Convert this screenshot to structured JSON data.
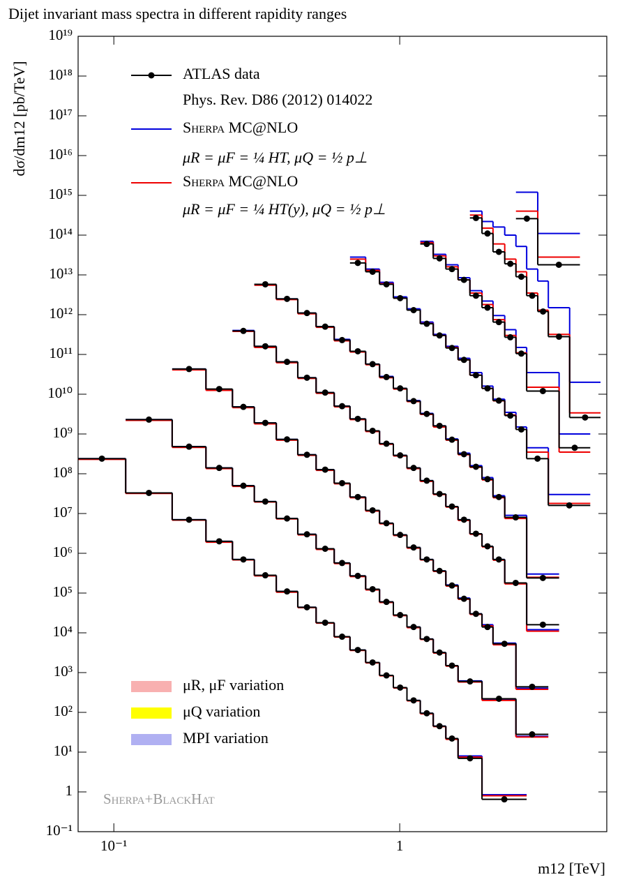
{
  "chart_data": {
    "type": "step",
    "title": "Dijet invariant mass spectra in different rapidity ranges",
    "xlabel": "m12 [TeV]",
    "ylabel": "dσ/dm12 [pb/TeV]",
    "log_x": true,
    "log_y": true,
    "xlim": [
      0.075,
      5.3
    ],
    "ylim": [
      0.1,
      1e+19
    ],
    "xticks": [
      {
        "value": 0.1,
        "label": "10⁻¹"
      },
      1
    ],
    "yticks": [
      {
        "value": 0.1,
        "label": "10⁻¹"
      },
      1,
      {
        "value": 10,
        "label": "10¹"
      },
      {
        "value": 100,
        "label": "10²"
      },
      {
        "value": 1000,
        "label": "10³"
      },
      {
        "value": 10000,
        "label": "10⁴"
      },
      {
        "value": 100000,
        "label": "10⁵"
      },
      {
        "value": 1000000,
        "label": "10⁶"
      },
      {
        "value": 10000000.0,
        "label": "10⁷"
      },
      {
        "value": 100000000.0,
        "label": "10⁸"
      },
      {
        "value": 1000000000.0,
        "label": "10⁹"
      },
      {
        "value": 10000000000.0,
        "label": "10¹⁰"
      },
      {
        "value": 100000000000.0,
        "label": "10¹¹"
      },
      {
        "value": 1000000000000.0,
        "label": "10¹²"
      },
      {
        "value": 10000000000000.0,
        "label": "10¹³"
      },
      {
        "value": 100000000000000.0,
        "label": "10¹⁴"
      },
      {
        "value": 1000000000000000.0,
        "label": "10¹⁵"
      },
      {
        "value": 1e+16,
        "label": "10¹⁶"
      },
      {
        "value": 1e+17,
        "label": "10¹⁷"
      },
      {
        "value": 1e+18,
        "label": "10¹⁸"
      },
      {
        "value": 1e+19,
        "label": "10¹⁹"
      }
    ],
    "ranges": [
      {
        "bins": [
          0.075,
          0.11,
          0.16,
          0.21,
          0.26,
          0.31,
          0.37,
          0.44,
          0.51,
          0.59,
          0.67,
          0.76,
          0.85,
          0.95,
          1.06,
          1.18,
          1.31,
          1.45,
          1.6,
          1.94,
          2.78
        ]
      },
      {
        "bins": [
          0.11,
          0.16,
          0.21,
          0.26,
          0.31,
          0.37,
          0.44,
          0.51,
          0.59,
          0.67,
          0.76,
          0.85,
          0.95,
          1.06,
          1.18,
          1.31,
          1.45,
          1.6,
          1.94,
          2.55,
          3.31
        ]
      },
      {
        "bins": [
          0.16,
          0.21,
          0.26,
          0.31,
          0.37,
          0.44,
          0.51,
          0.59,
          0.67,
          0.76,
          0.85,
          0.95,
          1.06,
          1.18,
          1.31,
          1.45,
          1.6,
          1.76,
          1.94,
          2.12,
          2.55,
          3.31
        ]
      },
      {
        "bins": [
          0.26,
          0.31,
          0.37,
          0.44,
          0.51,
          0.59,
          0.67,
          0.76,
          0.85,
          0.95,
          1.06,
          1.18,
          1.31,
          1.45,
          1.6,
          1.76,
          1.94,
          2.12,
          2.33,
          2.78,
          3.61
        ]
      },
      {
        "bins": [
          0.31,
          0.37,
          0.44,
          0.51,
          0.59,
          0.67,
          0.76,
          0.85,
          0.95,
          1.06,
          1.18,
          1.31,
          1.45,
          1.6,
          1.76,
          1.94,
          2.12,
          2.33,
          2.78,
          3.61
        ]
      },
      {
        "bins": [
          0.67,
          0.76,
          0.85,
          0.95,
          1.06,
          1.18,
          1.31,
          1.45,
          1.6,
          1.76,
          1.94,
          2.12,
          2.33,
          2.55,
          2.78,
          3.31,
          4.64
        ]
      },
      {
        "bins": [
          1.18,
          1.31,
          1.45,
          1.6,
          1.76,
          1.94,
          2.12,
          2.33,
          2.55,
          2.78,
          3.61,
          4.64
        ]
      },
      {
        "bins": [
          1.76,
          1.94,
          2.12,
          2.33,
          2.55,
          2.78,
          3.04,
          3.31,
          3.93,
          5.04
        ]
      },
      {
        "bins": [
          2.55,
          3.04,
          4.27
        ]
      }
    ],
    "series": [
      {
        "name": "ATLAS data",
        "reference": "Phys. Rev. D86 (2012) 014022",
        "color": "#000000",
        "values": [
          [
            240000000.0,
            33000000.0,
            7000000.0,
            2000000.0,
            700000.0,
            280000.0,
            110000.0,
            44000.0,
            18000.0,
            8000.0,
            3700.0,
            1800.0,
            850,
            420,
            200,
            95,
            45,
            22,
            7,
            0.65
          ],
          [
            2300000000.0,
            480000000.0,
            140000000.0,
            50000000.0,
            20000000.0,
            7500000.0,
            3000000.0,
            1300000.0,
            570000.0,
            270000.0,
            125000.0,
            60000.0,
            28000.0,
            14000.0,
            7000.0,
            3200.0,
            1500.0,
            600,
            220,
            28
          ],
          [
            43000000000.0,
            13500000000.0,
            4800000000.0,
            1900000000.0,
            730000000.0,
            300000000.0,
            127000000.0,
            58000000.0,
            26000000.0,
            12000000.0,
            5700000.0,
            2900000.0,
            1400000.0,
            700000.0,
            360000.0,
            155000.0,
            72000.0,
            30000.0,
            14000.0,
            5300.0,
            440
          ],
          [
            390000000000.0,
            160000000000.0,
            65000000000.0,
            26000000000.0,
            11000000000.0,
            5000000000.0,
            2400000000.0,
            1200000000.0,
            570000000.0,
            290000000.0,
            140000000.0,
            67000000.0,
            31000000.0,
            15000000.0,
            7000000.0,
            3100000.0,
            1500000.0,
            700000.0,
            180000.0,
            16000.0
          ],
          [
            5800000000000.0,
            2500000000000.0,
            1100000000000.0,
            500000000000.0,
            230000000000.0,
            120000000000.0,
            57000000000.0,
            27000000000.0,
            14000000000.0,
            6700000000.0,
            3200000000.0,
            1600000000.0,
            720000000.0,
            310000000.0,
            150000000.0,
            73000000.0,
            26000000.0,
            8000000.0,
            240000.0
          ],
          [
            20000000000000.0,
            12000000000000.0,
            5800000000000.0,
            2600000000000.0,
            1300000000000.0,
            590000000000.0,
            300000000000.0,
            145000000000.0,
            73000000000.0,
            30000000000.0,
            14000000000.0,
            6900000000.0,
            2900000000.0,
            1300000000.0,
            240000000.0,
            16000000.0
          ],
          [
            60000000000000.0,
            26000000000000.0,
            14000000000000.0,
            7500000000000.0,
            3000000000000.0,
            1500000000000.0,
            650000000000.0,
            270000000000.0,
            105000000000.0,
            12000000000.0,
            450000000.0
          ],
          [
            270000000000000.0,
            110000000000000.0,
            38000000000000.0,
            19000000000000.0,
            9000000000000.0,
            3000000000000.0,
            1200000000000.0,
            280000000000.0,
            2600000000.0
          ],
          [
            260000000000000.0,
            18000000000000.0
          ]
        ]
      },
      {
        "name": "Sherpa MC@NLO",
        "label": "μR = μF = ¼ HT,   μQ = ½ p⊥",
        "color": "#0000dd",
        "values": [
          [
            240000000.0,
            33000000.0,
            7000000.0,
            2000000.0,
            700000.0,
            280000.0,
            110000.0,
            44000.0,
            18000.0,
            8000.0,
            3700.0,
            1800.0,
            850,
            420,
            200,
            95,
            45,
            22,
            8,
            0.85
          ],
          [
            2300000000.0,
            480000000.0,
            140000000.0,
            50000000.0,
            20000000.0,
            7500000.0,
            3000000.0,
            1300000.0,
            570000.0,
            270000.0,
            125000.0,
            60000.0,
            28000.0,
            14000.0,
            7000.0,
            3200.0,
            1500.0,
            620,
            210,
            25
          ],
          [
            43000000000.0,
            13000000000.0,
            4800000000.0,
            1900000000.0,
            730000000.0,
            300000000.0,
            127000000.0,
            58000000.0,
            26000000.0,
            12000000.0,
            5700000.0,
            2900000.0,
            1400000.0,
            700000.0,
            360000.0,
            160000.0,
            75000.0,
            30000.0,
            16000.0,
            5500.0,
            400
          ],
          [
            400000000000.0,
            160000000000.0,
            65000000000.0,
            26000000000.0,
            11000000000.0,
            5000000000.0,
            2400000000.0,
            1200000000.0,
            570000000.0,
            290000000.0,
            140000000.0,
            67000000.0,
            31000000.0,
            15000000.0,
            7000000.0,
            3100000.0,
            1500000.0,
            700000.0,
            180000.0,
            12000.0
          ],
          [
            5800000000000.0,
            2500000000000.0,
            1100000000000.0,
            500000000000.0,
            240000000000.0,
            120000000000.0,
            57000000000.0,
            28000000000.0,
            14000000000.0,
            6900000000.0,
            3300000000.0,
            1600000000.0,
            750000000.0,
            330000000.0,
            160000000.0,
            80000000.0,
            28000000.0,
            9000000.0,
            300000.0
          ],
          [
            28000000000000.0,
            14000000000000.0,
            6500000000000.0,
            2800000000000.0,
            1400000000000.0,
            650000000000.0,
            320000000000.0,
            160000000000.0,
            80000000000.0,
            35000000000.0,
            16000000000.0,
            7500000000.0,
            3500000000.0,
            1500000000.0,
            450000000.0,
            30000000.0
          ],
          [
            70000000000000.0,
            33000000000000.0,
            18000000000000.0,
            8500000000000.0,
            4000000000000.0,
            2200000000000.0,
            950000000000.0,
            420000000000.0,
            150000000000.0,
            35000000000.0,
            1000000000.0
          ],
          [
            400000000000000.0,
            220000000000000.0,
            160000000000000.0,
            100000000000000.0,
            52000000000000.0,
            14000000000000.0,
            7000000000000.0,
            1500000000000.0,
            20000000000.0
          ],
          [
            1200000000000000.0,
            110000000000000.0
          ]
        ]
      },
      {
        "name": "Sherpa MC@NLO",
        "label": "μR = μF = ¼ HT(y),   μQ = ½ p⊥",
        "color": "#ee0000",
        "values": [
          [
            230000000.0,
            32000000.0,
            6800000.0,
            1900000.0,
            680000.0,
            270000.0,
            105000.0,
            43000.0,
            17500.0,
            7800.0,
            3600.0,
            1750.0,
            830,
            410,
            195,
            92,
            44,
            21,
            7.5,
            0.8
          ],
          [
            2200000000.0,
            460000000.0,
            135000000.0,
            48000000.0,
            19500000.0,
            7300000.0,
            2900000.0,
            1250000.0,
            550000.0,
            260000.0,
            120000.0,
            58000.0,
            27000.0,
            13500.0,
            6800.0,
            3100.0,
            1450.0,
            580,
            200,
            24
          ],
          [
            41000000000.0,
            12500000000.0,
            4600000000.0,
            1800000000.0,
            700000000.0,
            290000000.0,
            122000000.0,
            56000000.0,
            25000000.0,
            11500000.0,
            5500000.0,
            2800000.0,
            1350000.0,
            680000.0,
            350000.0,
            150000.0,
            70000.0,
            29000.0,
            15000.0,
            5000.0,
            380
          ],
          [
            380000000000.0,
            150000000000.0,
            62000000000.0,
            25000000000.0,
            10500000000.0,
            4800000000.0,
            2300000000.0,
            1150000000.0,
            550000000.0,
            280000000.0,
            135000000.0,
            64000000.0,
            30000000.0,
            14500000.0,
            6700000.0,
            3000000.0,
            1450000.0,
            670000.0,
            170000.0,
            11000.0
          ],
          [
            5500000000000.0,
            2400000000000.0,
            1050000000000.0,
            480000000000.0,
            220000000000.0,
            115000000000.0,
            55000000000.0,
            26000000000.0,
            13500000000.0,
            6500000000.0,
            3100000000.0,
            1500000000.0,
            700000000.0,
            300000000.0,
            145000000.0,
            70000000.0,
            25000000.0,
            7500000.0,
            250000.0
          ],
          [
            25000000000000.0,
            13000000000000.0,
            6000000000000.0,
            2600000000000.0,
            1300000000000.0,
            600000000000.0,
            300000000000.0,
            150000000000.0,
            73000000000.0,
            30000000000.0,
            14000000000.0,
            6800000000.0,
            3000000000.0,
            1300000000.0,
            350000000.0,
            18000000.0
          ],
          [
            65000000000000.0,
            30000000000000.0,
            16000000000000.0,
            7500000000000.0,
            3500000000000.0,
            1800000000000.0,
            750000000000.0,
            300000000000.0,
            110000000000.0,
            15000000000.0,
            350000000.0
          ],
          [
            320000000000000.0,
            150000000000000.0,
            60000000000000.0,
            25000000000000.0,
            12000000000000.0,
            3500000000000.0,
            1300000000000.0,
            320000000000.0,
            3400000000.0
          ],
          [
            400000000000000.0,
            28000000000000.0
          ]
        ]
      }
    ],
    "bands": [
      {
        "name": "μR, μF variation",
        "color": "#f8b0b0"
      },
      {
        "name": "μQ variation",
        "color": "#ffff00"
      },
      {
        "name": "MPI variation",
        "color": "#b0b0f2"
      }
    ],
    "watermark": "Sherpa+BlackHat"
  }
}
